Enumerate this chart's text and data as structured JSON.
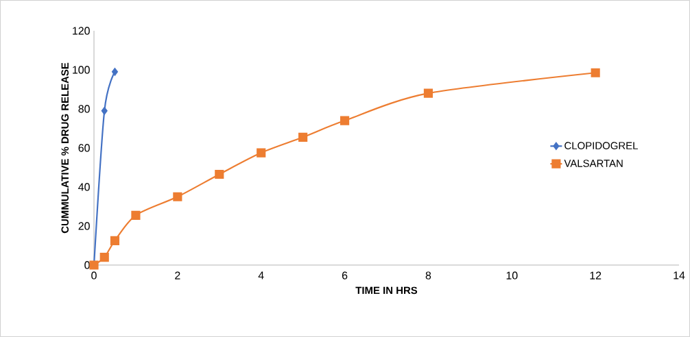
{
  "chart_data": {
    "type": "line",
    "xlabel": "TIME IN HRS",
    "ylabel": "CUMMULATIVE % DRUG RELEASE",
    "xlim": [
      0,
      14
    ],
    "xticks": [
      0,
      2,
      4,
      6,
      8,
      10,
      12,
      14
    ],
    "ylim": [
      0,
      120
    ],
    "yticks": [
      0,
      20,
      40,
      60,
      80,
      100,
      120
    ],
    "grid": false,
    "legend": "right",
    "line_style": "solid",
    "series": [
      {
        "name": "CLOPIDOGREL",
        "color": "#4472c4",
        "marker": "diamond",
        "x": [
          0,
          0.25,
          0.5
        ],
        "values": [
          0,
          79,
          99
        ]
      },
      {
        "name": "VALSARTAN",
        "color": "#ed7d31",
        "marker": "square",
        "x": [
          0,
          0.25,
          0.5,
          1,
          2,
          3,
          4,
          5,
          6,
          8,
          12
        ],
        "values": [
          0,
          4,
          12.5,
          25.5,
          35,
          46.5,
          57.5,
          65.5,
          74,
          88,
          98.5
        ]
      }
    ]
  }
}
